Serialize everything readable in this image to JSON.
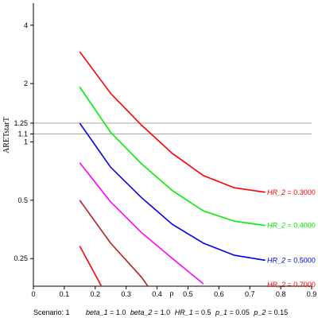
{
  "chart_data": {
    "type": "line",
    "title": "",
    "xlabel": "ρ",
    "ylabel": "ARETstarT",
    "xlim": [
      0,
      0.9
    ],
    "ylim": [
      0.18,
      5.2
    ],
    "y_scale": "log",
    "x_ticks": [
      "0",
      "0.1",
      "0.2",
      "0.3",
      "0.4",
      "0.5",
      "0.6",
      "0.7",
      "0.8",
      "0.9"
    ],
    "y_ticks": [
      {
        "value": 0.25,
        "label": "0.25"
      },
      {
        "value": 0.5,
        "label": "0.5"
      },
      {
        "value": 1,
        "label": "1"
      },
      {
        "value": 1.1,
        "label": "1.1"
      },
      {
        "value": 1.25,
        "label": "1.25"
      },
      {
        "value": 2,
        "label": "2"
      },
      {
        "value": 4,
        "label": "4"
      }
    ],
    "reference_lines": [
      1.1,
      1.25
    ],
    "series": [
      {
        "name": "HR_2 = 0.3000",
        "name_italic": "HR_2",
        "name_value": " = 0.3000",
        "color": "#ff0000",
        "x": [
          0.15,
          0.25,
          0.35,
          0.45,
          0.55,
          0.65,
          0.75
        ],
        "y": [
          2.92,
          1.78,
          1.22,
          0.87,
          0.67,
          0.58,
          0.55
        ]
      },
      {
        "name": "HR_2 = 0.4000",
        "name_italic": "HR_2",
        "name_value": " = 0.4000",
        "color": "#00ee00",
        "x": [
          0.15,
          0.25,
          0.35,
          0.45,
          0.55,
          0.65,
          0.75
        ],
        "y": [
          1.92,
          1.12,
          0.77,
          0.56,
          0.44,
          0.39,
          0.37
        ]
      },
      {
        "name": "HR_2 = 0.5000",
        "name_italic": "HR_2",
        "name_value": " = 0.5000",
        "color": "#0000ee",
        "x": [
          0.15,
          0.25,
          0.35,
          0.45,
          0.55,
          0.65,
          0.75
        ],
        "y": [
          1.25,
          0.74,
          0.515,
          0.375,
          0.3,
          0.26,
          0.245
        ]
      },
      {
        "name": "",
        "name_italic": "",
        "name_value": "",
        "color": "#ff00ff",
        "x": [
          0.15,
          0.25,
          0.35,
          0.45,
          0.55
        ],
        "y": [
          0.78,
          0.49,
          0.34,
          0.25,
          0.185
        ]
      },
      {
        "name": "",
        "name_italic": "",
        "name_value": "",
        "color": "#b22222",
        "x": [
          0.15,
          0.25,
          0.35,
          0.37
        ],
        "y": [
          0.5,
          0.3,
          0.2,
          0.18
        ]
      },
      {
        "name": "HR_2 = 0.7000",
        "name_italic": "HR_2",
        "name_value": " = 0.7000",
        "color": "#ff0000",
        "x": [
          0.15,
          0.22
        ],
        "y": [
          0.29,
          0.18
        ]
      }
    ]
  },
  "caption": {
    "scenario": "Scenario: 1",
    "beta_1_label": "beta_1",
    "beta_1_value": " = 1.0",
    "beta_2_label": "beta_2",
    "beta_2_value": " = 1.0",
    "hr_1_label": "HR_1",
    "hr_1_value": " = 0.5",
    "p_1_label": "p_1",
    "p_1_value": " = 0.05",
    "p_2_label": "p_2",
    "p_2_value": " = 0.15"
  }
}
